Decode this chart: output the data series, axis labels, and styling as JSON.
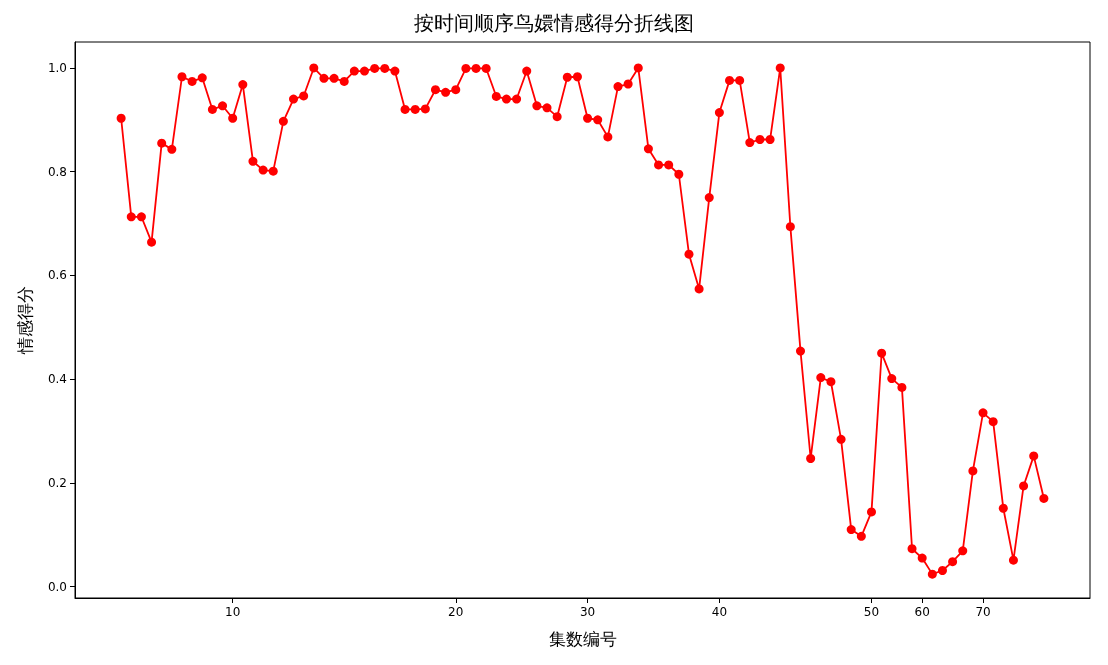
{
  "chart_data": {
    "type": "line",
    "title": "按时间顺序鸟嬛情感得分折线图",
    "xlabel": "集数编号",
    "ylabel": "情感得分",
    "categories": [
      null,
      null,
      null,
      null,
      null,
      null,
      null,
      null,
      null,
      null,
      null,
      "10",
      null,
      null,
      null,
      null,
      null,
      null,
      null,
      null,
      null,
      null,
      null,
      null,
      null,
      null,
      null,
      null,
      null,
      null,
      null,
      null,
      null,
      "20",
      null,
      null,
      null,
      null,
      null,
      null,
      null,
      null,
      null,
      null,
      null,
      null,
      "30",
      null,
      null,
      null,
      null,
      null,
      null,
      null,
      null,
      null,
      null,
      null,
      null,
      "40",
      null,
      null,
      null,
      null,
      null,
      null,
      null,
      null,
      null,
      null,
      null,
      null,
      null,
      null,
      "50",
      null,
      null,
      null,
      null,
      "60",
      null,
      null,
      null,
      null,
      null,
      "70",
      null,
      null,
      null,
      null,
      null,
      null
    ],
    "series": [
      {
        "color": "#ff0000",
        "values": [
          0.903,
          0.713,
          0.713,
          0.664,
          0.855,
          0.843,
          0.983,
          0.974,
          0.981,
          0.92,
          0.927,
          0.903,
          0.968,
          0.82,
          0.803,
          0.801,
          0.897,
          0.94,
          0.946,
          1.0,
          0.98,
          0.98,
          0.974,
          0.994,
          0.994,
          0.999,
          0.999,
          0.994,
          0.92,
          0.92,
          0.921,
          0.958,
          0.953,
          0.958,
          0.999,
          0.999,
          0.999,
          0.945,
          0.94,
          0.94,
          0.994,
          0.927,
          0.923,
          0.906,
          0.982,
          0.983,
          0.903,
          0.9,
          0.867,
          0.964,
          0.969,
          1.0,
          0.844,
          0.813,
          0.813,
          0.795,
          0.641,
          0.574,
          0.75,
          0.914,
          0.976,
          0.976,
          0.856,
          0.862,
          0.862,
          1.0,
          0.694,
          0.454,
          0.247,
          0.403,
          0.395,
          0.284,
          0.11,
          0.097,
          0.144,
          0.45,
          0.401,
          0.384,
          0.073,
          0.055,
          0.024,
          0.031,
          0.048,
          0.069,
          0.223,
          0.335,
          0.318,
          0.151,
          0.051,
          0.194,
          0.252,
          0.17
        ]
      }
    ],
    "ylim": [
      -0.022,
      1.05
    ],
    "yticks": [
      {
        "value": 0,
        "label": "0.0"
      },
      0.2,
      0.4,
      0.6,
      0.8,
      {
        "value": 1,
        "label": "1.0"
      }
    ],
    "marker": "circle",
    "line_style": "solid"
  }
}
